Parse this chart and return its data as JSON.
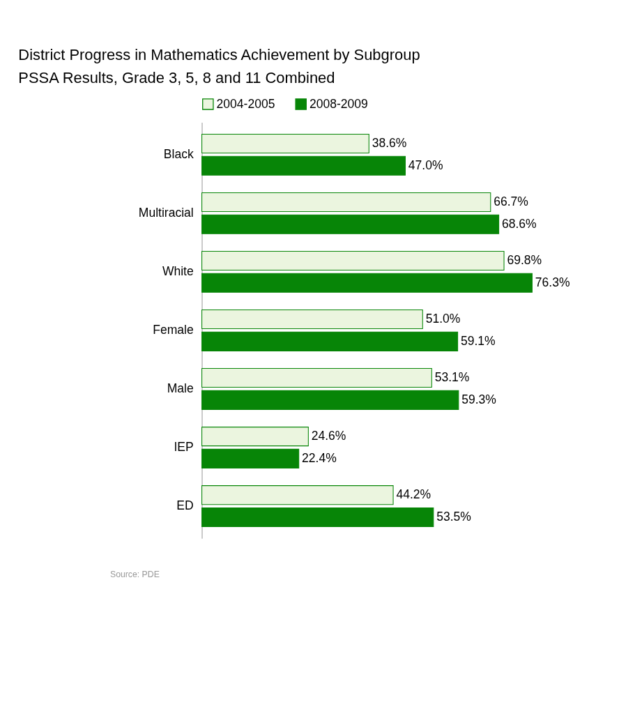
{
  "chart_data": {
    "type": "bar",
    "orientation": "horizontal",
    "title": "District Progress in Mathematics Achievement by Subgroup",
    "subtitle": "PSSA Results, Grade 3, 5, 8 and 11 Combined",
    "categories": [
      "Black",
      "Multiracial",
      "White",
      "Female",
      "Male",
      "IEP",
      "ED"
    ],
    "series": [
      {
        "name": "2004-2005",
        "color": "#ebf5df",
        "values": [
          38.6,
          66.7,
          69.8,
          51.0,
          53.1,
          24.6,
          44.2
        ],
        "value_labels": [
          "38.6%",
          "66.7%",
          "69.8%",
          "51.0%",
          "53.1%",
          "24.6%",
          "44.2%"
        ]
      },
      {
        "name": "2008-2009",
        "color": "#078507",
        "values": [
          47.0,
          68.6,
          76.3,
          59.1,
          59.3,
          22.4,
          53.5
        ],
        "value_labels": [
          "47.0%",
          "68.6%",
          "76.3%",
          "59.1%",
          "59.3%",
          "22.4%",
          "53.5%"
        ]
      }
    ],
    "tick_labels": "y",
    "legend": "top",
    "grid": false,
    "annotations": [
      "Source: PDE"
    ]
  }
}
